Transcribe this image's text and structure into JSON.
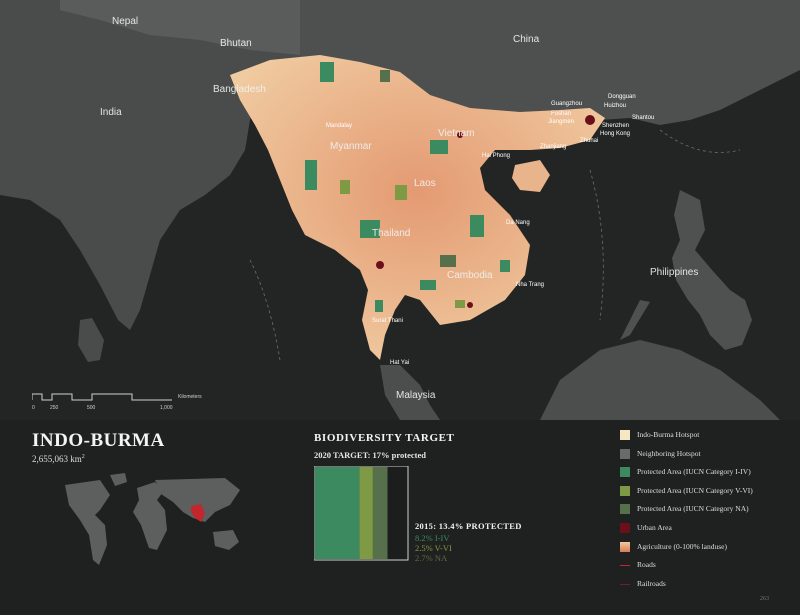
{
  "map": {
    "countries": [
      {
        "id": "nepal",
        "label": "Nepal"
      },
      {
        "id": "bhutan",
        "label": "Bhutan"
      },
      {
        "id": "china",
        "label": "China"
      },
      {
        "id": "bangladesh",
        "label": "Bangladesh"
      },
      {
        "id": "india",
        "label": "India"
      },
      {
        "id": "myanmar",
        "label": "Myanmar"
      },
      {
        "id": "vietnam",
        "label": "Vietnam"
      },
      {
        "id": "laos",
        "label": "Laos"
      },
      {
        "id": "thailand",
        "label": "Thailand"
      },
      {
        "id": "cambodia",
        "label": "Cambodia"
      },
      {
        "id": "philippines",
        "label": "Philippines"
      },
      {
        "id": "malaysia",
        "label": "Malaysia"
      }
    ],
    "cities": [
      {
        "id": "mandalay",
        "label": "Mandalay"
      },
      {
        "id": "haiphong",
        "label": "Hai Phong"
      },
      {
        "id": "guangzhou",
        "label": "Guangzhou"
      },
      {
        "id": "dongguan",
        "label": "Dongguan"
      },
      {
        "id": "huizhou",
        "label": "Huizhou"
      },
      {
        "id": "shantou",
        "label": "Shantou"
      },
      {
        "id": "foshan",
        "label": "Foshan"
      },
      {
        "id": "jiangmen",
        "label": "Jiangmen"
      },
      {
        "id": "shenzhen",
        "label": "Shenzhen"
      },
      {
        "id": "hongkong",
        "label": "Hong Kong"
      },
      {
        "id": "zhuhai",
        "label": "Zhuhai"
      },
      {
        "id": "zhanjiang",
        "label": "Zhanjiang"
      },
      {
        "id": "danang",
        "label": "Da Nang"
      },
      {
        "id": "nhatrang",
        "label": "Nha Trang"
      },
      {
        "id": "suratthani",
        "label": "Surat Thani"
      },
      {
        "id": "hatyai",
        "label": "Hat Yai"
      }
    ],
    "scale": {
      "ticks": [
        "0",
        "250",
        "500",
        "1,000"
      ],
      "unit": "Kilometers"
    }
  },
  "info": {
    "title": "INDO-BURMA",
    "area": "2,655,063 km",
    "area_sup": "2"
  },
  "target": {
    "title": "BIODIVERSITY TARGET",
    "subtitle": "2020 TARGET: 17% protected",
    "protected_label": "2015: 13.4% PROTECTED",
    "stats": [
      "8.2% I-IV",
      "2.5% V-VI",
      "2.7% NA"
    ]
  },
  "chart_data": {
    "type": "bar",
    "categories": [
      "I-IV",
      "V-VI",
      "NA"
    ],
    "values": [
      8.2,
      2.5,
      2.7
    ],
    "total": 13.4,
    "target": 17,
    "colors": [
      "#3c8a60",
      "#7e9a44",
      "#55704a"
    ]
  },
  "legend": [
    {
      "label": "Indo-Burma Hotspot",
      "color": "#f4e7c1",
      "kind": "box"
    },
    {
      "label": "Neighboring Hotspot",
      "color": "#6a6a6a",
      "kind": "box"
    },
    {
      "label": "Protected Area (IUCN Category I-IV)",
      "color": "#3c8a60",
      "kind": "box"
    },
    {
      "label": "Protected Area (IUCN Category V-VI)",
      "color": "#7e9a44",
      "kind": "box"
    },
    {
      "label": "Protected Area (IUCN Category NA)",
      "color": "#55704a",
      "kind": "box"
    },
    {
      "label": "Urban Area",
      "color": "#6b0f1a",
      "kind": "box"
    },
    {
      "label": "Agriculture (0-100% landuse)",
      "color": "#e7a47c",
      "kind": "box"
    },
    {
      "label": "Roads",
      "color": "#c1272d",
      "kind": "line"
    },
    {
      "label": "Railroads",
      "color": "#7a1a2a",
      "kind": "line"
    }
  ],
  "page_number": "263"
}
